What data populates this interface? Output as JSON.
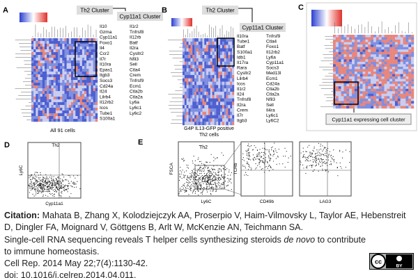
{
  "panels": [
    {
      "label": "A",
      "th2_cluster": "Th2  Cluster",
      "cyp_cluster": "Cyp11a1 Cluster",
      "genes_left": [
        "Il10",
        "Gzma",
        "Cyp11a1",
        "Foxo1",
        "Il4",
        "Ccr2",
        "Il7r",
        "Il10ra",
        "Epas1",
        "Itgb3",
        "Socs3",
        "Cd24a",
        "Il24",
        "Lilrb4",
        "Il12rb2",
        "Icos",
        "Tube1",
        "S100a1"
      ],
      "genes_right": [
        "Il1r2",
        "Tnfrsf8",
        "Il12rb",
        "Batf",
        "Il2ra",
        "Cysltr2",
        "Nfil3",
        "Sell",
        "Ctla4",
        "Crem",
        "Tnfrsf9",
        "Ecm1",
        "Ctla2b",
        "Ctla2a",
        "Ly6a",
        "Ly6c1",
        "Ly6c2"
      ],
      "caption": "All 91 cells"
    },
    {
      "label": "B",
      "th2_cluster": "Th2   Cluster",
      "cyp_cluster": "Cyp11a1 Cluster",
      "genes_left": [
        "Il10ra",
        "Tube1",
        "Batf",
        "S100a1",
        "Idb1",
        "Il17ra",
        "Rara",
        "Cysltr2",
        "Lilrb4",
        "Icos",
        "Il1r2",
        "Il24",
        "Tnfrsf8",
        "Il2ra",
        "Crem",
        "Il7r",
        "Itgb3"
      ],
      "genes_right": [
        "Tnfrsf9",
        "Ctla4",
        "Foxo1",
        "Il12rb2",
        "Ly6a",
        "Cyp11a1",
        "Socs3",
        "Med13l",
        "Ecm1",
        "Cd24a",
        "Ctla2b",
        "Ctla2a",
        "Nfil3",
        "Sell",
        "Il4ra",
        "Ly6c1",
        "Ly6C2"
      ],
      "caption_line1": "G4P IL13-GFP positive",
      "caption_line2": "Th2 cells"
    },
    {
      "label": "C",
      "caption": "Cyp11a1 expressing cell cluster"
    },
    {
      "label": "D",
      "title": "Th2",
      "y_label": "Ly6C",
      "x_label": "Cyp11a1"
    },
    {
      "label": "E",
      "title": "Th2",
      "y_label": "FSCA",
      "x_label": "Ly6C",
      "y_label_2": "TCRb",
      "x_label_2": "CD49b",
      "x_label_3": "LAG3"
    }
  ],
  "citation": {
    "heading": "Citation:",
    "authors": "Mahata B, Zhang X, Kolodziejczyk AA, Proserpio V, Haim-Vilmovsky L, Taylor AE, Hebenstreit D, Dingler FA, Moignard V, Göttgens B, Arlt W, McKenzie AN, Teichmann SA.",
    "title_before": "Single-cell RNA sequencing reveals T helper cells synthesizing steroids ",
    "title_italic": "de novo",
    "title_after": " to contribute to immune homeostasis.",
    "journal": "Cell Rep. 2014 May 22;7(4):1130-42.",
    "doi": "doi: 10.1016/j.celrep.2014.04.011.",
    "license_cc": "cc",
    "license_by": "BY"
  }
}
